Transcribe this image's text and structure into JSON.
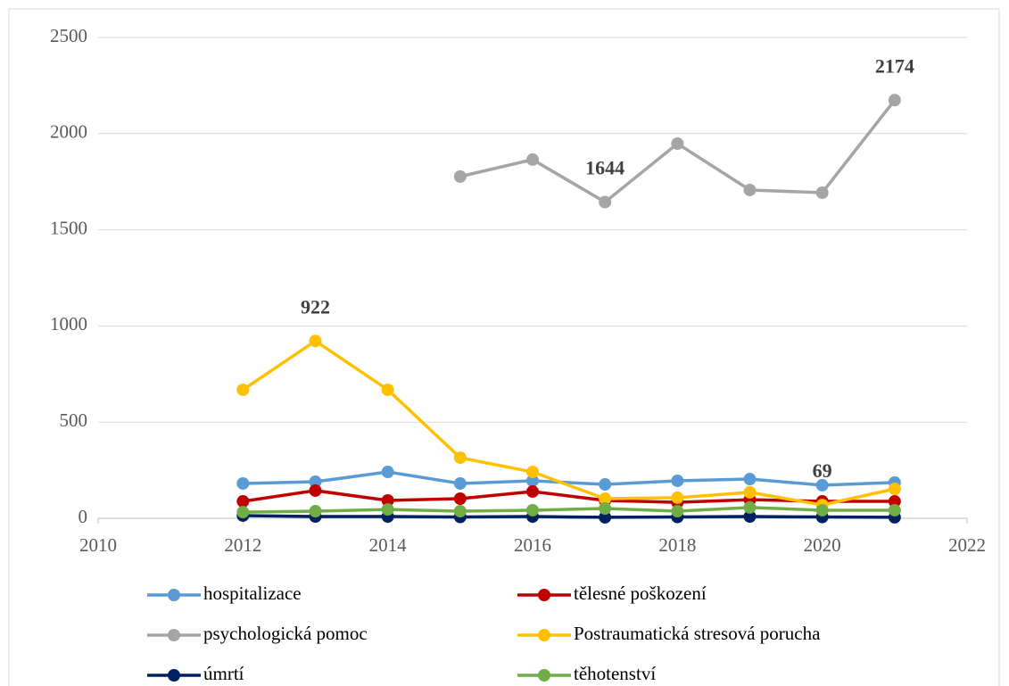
{
  "chart_data": {
    "type": "line",
    "x": [
      2012,
      2013,
      2014,
      2015,
      2016,
      2017,
      2018,
      2019,
      2020,
      2021
    ],
    "xlim": [
      2010,
      2022
    ],
    "xticks": [
      2010,
      2012,
      2014,
      2016,
      2018,
      2020,
      2022
    ],
    "ylim": [
      0,
      2500
    ],
    "yticks": [
      0,
      500,
      1000,
      1500,
      2000,
      2500
    ],
    "grid": true,
    "legend": "bottom",
    "series": [
      {
        "name": "hospitalizace",
        "color": "#5b9bd5",
        "values": [
          181,
          190,
          241,
          181,
          195,
          176,
          195,
          204,
          172,
          186
        ]
      },
      {
        "name": "tělesné poškození",
        "color": "#c00000",
        "values": [
          88,
          144,
          93,
          102,
          139,
          93,
          83,
          97,
          88,
          88
        ]
      },
      {
        "name": "psychologická pomoc",
        "color": "#a5a5a5",
        "values": [
          null,
          null,
          null,
          1777,
          1865,
          1644,
          1948,
          1707,
          1693,
          2174
        ],
        "data_labels": [
          5,
          9
        ]
      },
      {
        "name": "Postraumatická stresová porucha",
        "color": "#ffc000",
        "values": [
          668,
          922,
          668,
          315,
          241,
          102,
          107,
          135,
          69,
          153
        ],
        "data_labels": [
          1,
          8
        ]
      },
      {
        "name": "úmrtí",
        "color": "#002060",
        "values": [
          14,
          9,
          9,
          7,
          9,
          5,
          7,
          9,
          7,
          5
        ]
      },
      {
        "name": "těhotenství",
        "color": "#70ad47",
        "values": [
          32,
          37,
          46,
          37,
          42,
          51,
          37,
          56,
          42,
          42
        ]
      }
    ]
  }
}
